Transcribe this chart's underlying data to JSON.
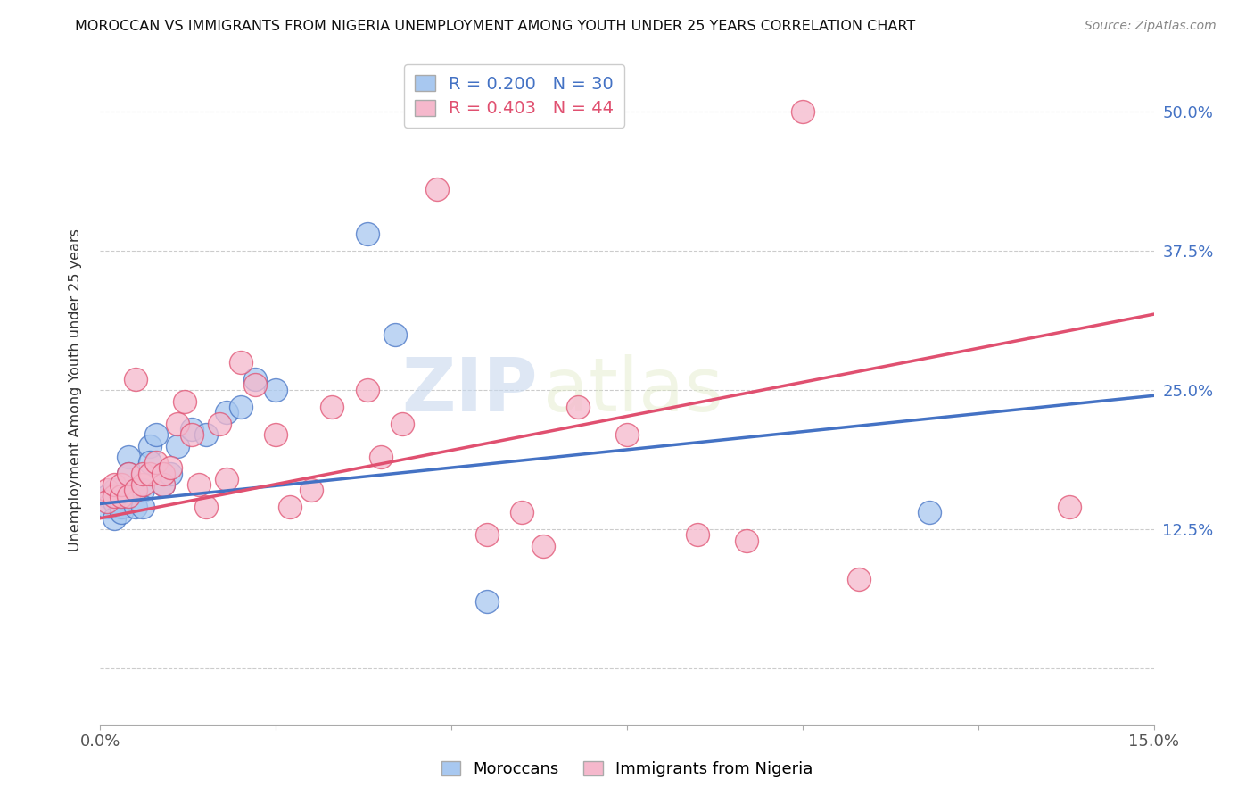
{
  "title": "MOROCCAN VS IMMIGRANTS FROM NIGERIA UNEMPLOYMENT AMONG YOUTH UNDER 25 YEARS CORRELATION CHART",
  "source": "Source: ZipAtlas.com",
  "ylabel_label": "Unemployment Among Youth under 25 years",
  "legend_label1": "Moroccans",
  "legend_label2": "Immigrants from Nigeria",
  "r1": 0.2,
  "n1": 30,
  "r2": 0.403,
  "n2": 44,
  "color1": "#a8c8f0",
  "color2": "#f5b8cc",
  "line_color1": "#4472C4",
  "line_color2": "#E05070",
  "xlim": [
    0.0,
    0.15
  ],
  "ylim": [
    -0.05,
    0.55
  ],
  "xticks": [
    0.0,
    0.025,
    0.05,
    0.075,
    0.1,
    0.125,
    0.15
  ],
  "xtick_labels": [
    "0.0%",
    "",
    "",
    "",
    "",
    "",
    "15.0%"
  ],
  "ytick_positions": [
    0.0,
    0.125,
    0.25,
    0.375,
    0.5
  ],
  "ytick_labels": [
    "",
    "12.5%",
    "25.0%",
    "37.5%",
    "50.0%"
  ],
  "moroccans_x": [
    0.001,
    0.001,
    0.002,
    0.002,
    0.002,
    0.003,
    0.003,
    0.003,
    0.004,
    0.004,
    0.005,
    0.005,
    0.006,
    0.006,
    0.007,
    0.007,
    0.008,
    0.009,
    0.01,
    0.011,
    0.013,
    0.015,
    0.018,
    0.02,
    0.022,
    0.025,
    0.038,
    0.042,
    0.055,
    0.118
  ],
  "moroccans_y": [
    0.155,
    0.145,
    0.16,
    0.15,
    0.135,
    0.145,
    0.155,
    0.14,
    0.19,
    0.175,
    0.16,
    0.145,
    0.16,
    0.145,
    0.2,
    0.185,
    0.21,
    0.165,
    0.175,
    0.2,
    0.215,
    0.21,
    0.23,
    0.235,
    0.26,
    0.25,
    0.39,
    0.3,
    0.06,
    0.14
  ],
  "nigeria_x": [
    0.001,
    0.001,
    0.002,
    0.002,
    0.003,
    0.003,
    0.004,
    0.004,
    0.005,
    0.005,
    0.006,
    0.006,
    0.007,
    0.008,
    0.009,
    0.009,
    0.01,
    0.011,
    0.012,
    0.013,
    0.014,
    0.015,
    0.017,
    0.018,
    0.02,
    0.022,
    0.025,
    0.027,
    0.03,
    0.033,
    0.038,
    0.04,
    0.043,
    0.048,
    0.055,
    0.06,
    0.063,
    0.068,
    0.075,
    0.085,
    0.092,
    0.1,
    0.108,
    0.138
  ],
  "nigeria_y": [
    0.16,
    0.15,
    0.155,
    0.165,
    0.155,
    0.165,
    0.155,
    0.175,
    0.16,
    0.26,
    0.165,
    0.175,
    0.175,
    0.185,
    0.165,
    0.175,
    0.18,
    0.22,
    0.24,
    0.21,
    0.165,
    0.145,
    0.22,
    0.17,
    0.275,
    0.255,
    0.21,
    0.145,
    0.16,
    0.235,
    0.25,
    0.19,
    0.22,
    0.43,
    0.12,
    0.14,
    0.11,
    0.235,
    0.21,
    0.12,
    0.115,
    0.5,
    0.08,
    0.145
  ],
  "watermark_zip": "ZIP",
  "watermark_atlas": "atlas",
  "background_color": "#ffffff",
  "grid_color": "#cccccc"
}
